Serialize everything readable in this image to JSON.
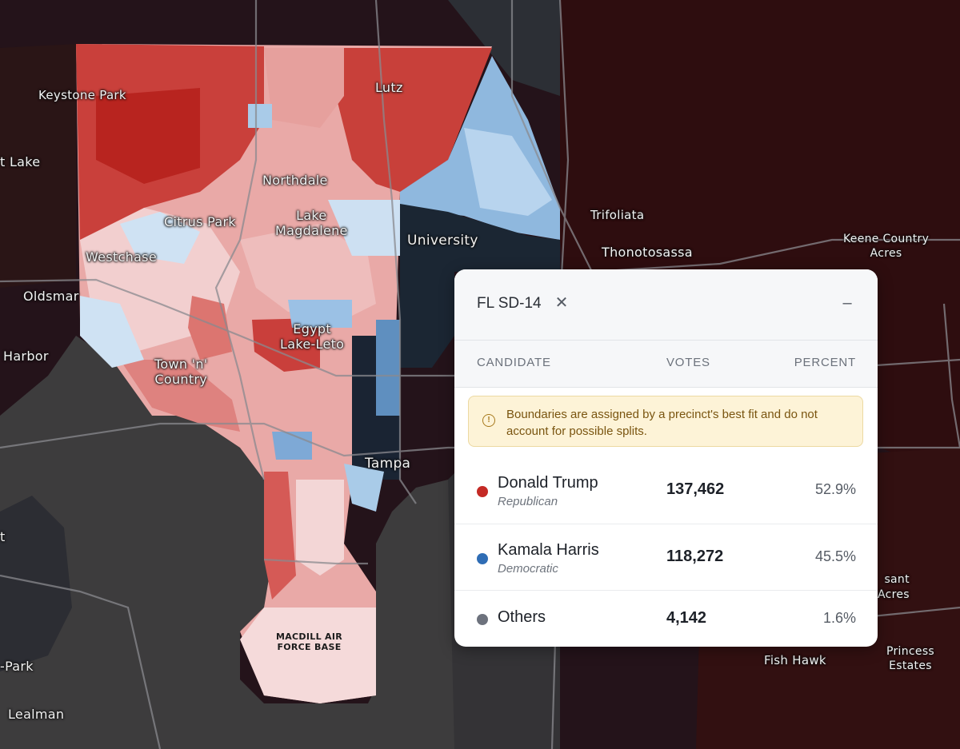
{
  "map": {
    "places": [
      {
        "id": "keystone-park",
        "label": "Keystone Park"
      },
      {
        "id": "lutz",
        "label": "Lutz"
      },
      {
        "id": "lake",
        "label": "t Lake"
      },
      {
        "id": "northdale",
        "label": "Northdale"
      },
      {
        "id": "citrus-park",
        "label": "Citrus Park"
      },
      {
        "id": "lake-magdalene",
        "label": "Lake\nMagdalene"
      },
      {
        "id": "university",
        "label": "University"
      },
      {
        "id": "trifoliata",
        "label": "Trifoliata"
      },
      {
        "id": "thonotosassa",
        "label": "Thonotosassa"
      },
      {
        "id": "keene-country-acres",
        "label": "Keene Country\nAcres"
      },
      {
        "id": "westchase",
        "label": "Westchase"
      },
      {
        "id": "oldsmar",
        "label": "Oldsmar"
      },
      {
        "id": "egypt-lake-leto",
        "label": "Egypt\nLake-Leto"
      },
      {
        "id": "harbor",
        "label": "Harbor"
      },
      {
        "id": "town-n-country",
        "label": "Town 'n'\nCountry"
      },
      {
        "id": "tampa",
        "label": "Tampa"
      },
      {
        "id": "macdill",
        "label": "MACDILL AIR\nFORCE BASE"
      },
      {
        "id": "fish-hawk",
        "label": "Fish Hawk"
      },
      {
        "id": "princess-estates",
        "label": "Princess\nEstates"
      },
      {
        "id": "sant-acres",
        "label": "sant\nAcres"
      },
      {
        "id": "park",
        "label": "-Park"
      },
      {
        "id": "lealman",
        "label": "Lealman"
      },
      {
        "id": "t-edge",
        "label": "t"
      }
    ],
    "colors": {
      "background": "#1f1213",
      "water": "#3c3b3c",
      "republican_strong": "#c83a35",
      "republican_light": "#eeb9b8",
      "democrat_light": "#a9cbe8",
      "democrat_strong": "#1a2735"
    }
  },
  "panel": {
    "title": "FL SD-14",
    "close_icon": "close-icon",
    "minimize_icon": "minimize-icon",
    "columns": {
      "candidate": "CANDIDATE",
      "votes": "VOTES",
      "percent": "PERCENT"
    },
    "warning": {
      "icon": "info-icon",
      "text": "Boundaries are assigned by a precinct's best fit and do not account for possible splits."
    },
    "candidates": [
      {
        "name": "Donald Trump",
        "party": "Republican",
        "votes": "137,462",
        "percent": "52.9%",
        "color": "#c42a25"
      },
      {
        "name": "Kamala Harris",
        "party": "Democratic",
        "votes": "118,272",
        "percent": "45.5%",
        "color": "#2f6db5"
      },
      {
        "name": "Others",
        "party": "",
        "votes": "4,142",
        "percent": "1.6%",
        "color": "#6d727d"
      }
    ]
  }
}
